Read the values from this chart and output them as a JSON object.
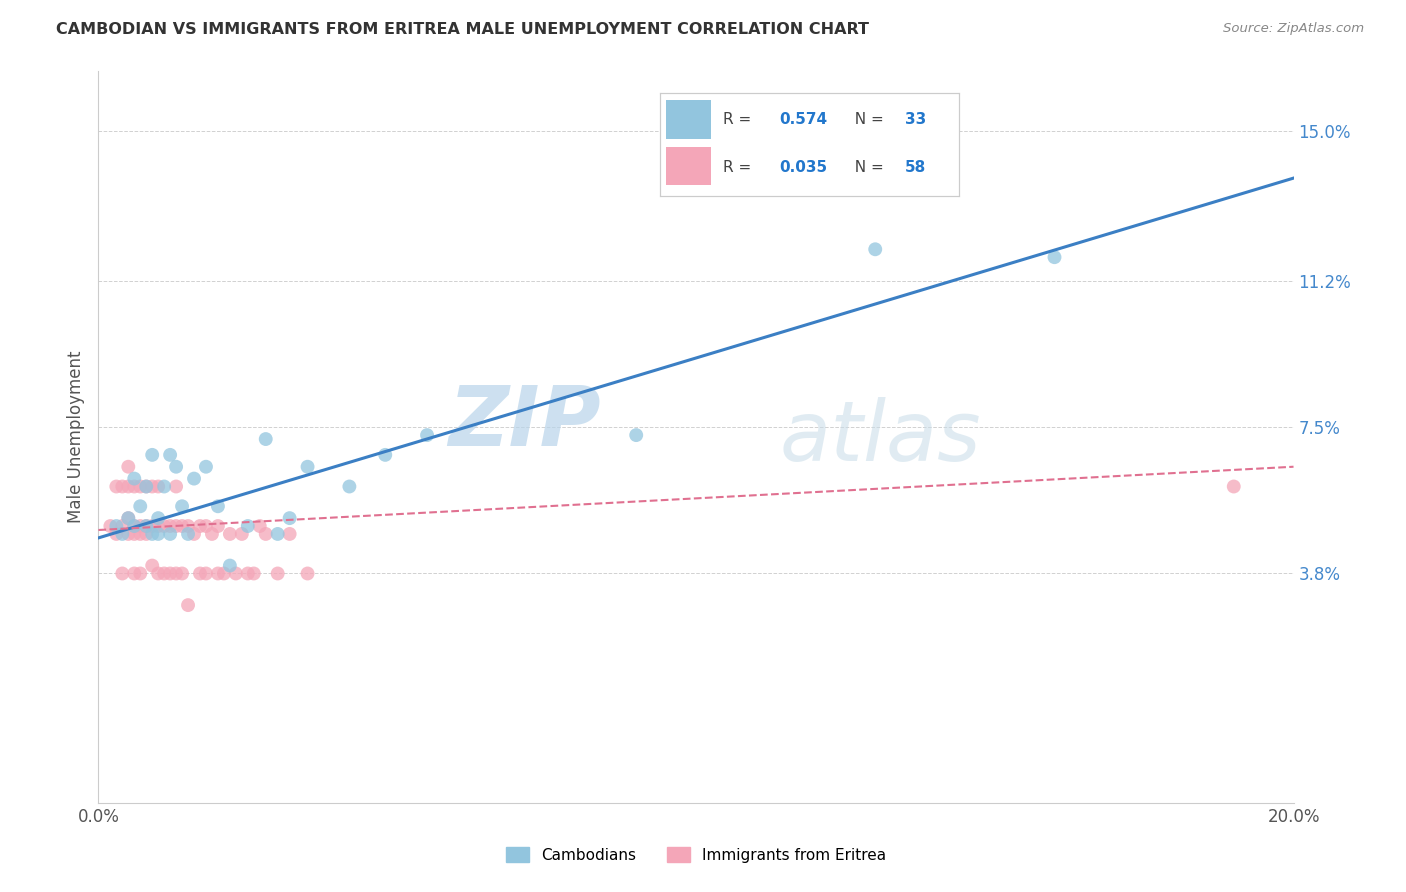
{
  "title": "CAMBODIAN VS IMMIGRANTS FROM ERITREA MALE UNEMPLOYMENT CORRELATION CHART",
  "source": "Source: ZipAtlas.com",
  "ylabel": "Male Unemployment",
  "xlim": [
    0.0,
    0.2
  ],
  "ylim": [
    -0.02,
    0.165
  ],
  "yticks": [
    0.038,
    0.075,
    0.112,
    0.15
  ],
  "ytick_labels": [
    "3.8%",
    "7.5%",
    "11.2%",
    "15.0%"
  ],
  "xticks": [
    0.0,
    0.05,
    0.1,
    0.15,
    0.2
  ],
  "xtick_labels": [
    "0.0%",
    "",
    "",
    "",
    "20.0%"
  ],
  "legend_label1": "Cambodians",
  "legend_label2": "Immigrants from Eritrea",
  "color_blue": "#92c5de",
  "color_pink": "#f4a6b8",
  "line_blue": "#3b7fc4",
  "line_pink": "#e07090",
  "watermark_zip": "ZIP",
  "watermark_atlas": "atlas",
  "cambodian_x": [
    0.003,
    0.004,
    0.005,
    0.006,
    0.006,
    0.007,
    0.008,
    0.008,
    0.009,
    0.009,
    0.01,
    0.01,
    0.011,
    0.012,
    0.012,
    0.013,
    0.014,
    0.015,
    0.016,
    0.018,
    0.02,
    0.022,
    0.025,
    0.028,
    0.03,
    0.032,
    0.035,
    0.042,
    0.048,
    0.055,
    0.09,
    0.13,
    0.16
  ],
  "cambodian_y": [
    0.05,
    0.048,
    0.052,
    0.05,
    0.062,
    0.055,
    0.05,
    0.06,
    0.048,
    0.068,
    0.048,
    0.052,
    0.06,
    0.048,
    0.068,
    0.065,
    0.055,
    0.048,
    0.062,
    0.065,
    0.055,
    0.04,
    0.05,
    0.072,
    0.048,
    0.052,
    0.065,
    0.06,
    0.068,
    0.073,
    0.073,
    0.12,
    0.118
  ],
  "eritrea_x": [
    0.002,
    0.003,
    0.003,
    0.004,
    0.004,
    0.004,
    0.005,
    0.005,
    0.005,
    0.005,
    0.006,
    0.006,
    0.006,
    0.006,
    0.007,
    0.007,
    0.007,
    0.007,
    0.008,
    0.008,
    0.008,
    0.009,
    0.009,
    0.009,
    0.01,
    0.01,
    0.01,
    0.011,
    0.011,
    0.012,
    0.012,
    0.013,
    0.013,
    0.013,
    0.014,
    0.014,
    0.015,
    0.015,
    0.016,
    0.017,
    0.017,
    0.018,
    0.018,
    0.019,
    0.02,
    0.02,
    0.021,
    0.022,
    0.023,
    0.024,
    0.025,
    0.026,
    0.027,
    0.028,
    0.03,
    0.032,
    0.035,
    0.19
  ],
  "eritrea_y": [
    0.05,
    0.06,
    0.048,
    0.05,
    0.06,
    0.038,
    0.052,
    0.06,
    0.048,
    0.065,
    0.05,
    0.06,
    0.048,
    0.038,
    0.05,
    0.06,
    0.048,
    0.038,
    0.05,
    0.06,
    0.048,
    0.05,
    0.06,
    0.04,
    0.05,
    0.06,
    0.038,
    0.05,
    0.038,
    0.05,
    0.038,
    0.05,
    0.06,
    0.038,
    0.05,
    0.038,
    0.05,
    0.03,
    0.048,
    0.05,
    0.038,
    0.05,
    0.038,
    0.048,
    0.038,
    0.05,
    0.038,
    0.048,
    0.038,
    0.048,
    0.038,
    0.038,
    0.05,
    0.048,
    0.038,
    0.048,
    0.038,
    0.06
  ],
  "blue_line_x0": 0.0,
  "blue_line_y0": 0.047,
  "blue_line_x1": 0.2,
  "blue_line_y1": 0.138,
  "pink_line_x0": 0.0,
  "pink_line_y0": 0.049,
  "pink_line_x1": 0.2,
  "pink_line_y1": 0.065
}
